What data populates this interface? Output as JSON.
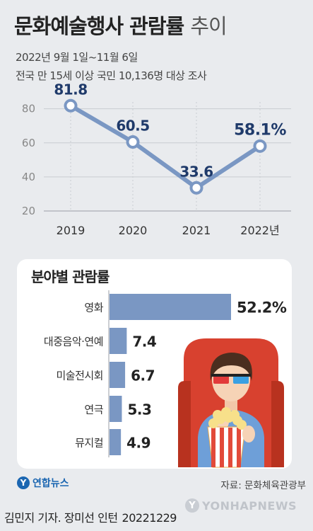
{
  "header": {
    "title_bold": "문화예술행사 관람률",
    "title_light": "추이",
    "subtitle_line1": "2022년 9월 1일~11월 6일",
    "subtitle_line2": "전국 만 15세 이상 국민 10,136명 대상 조사"
  },
  "chart_data": [
    {
      "type": "line",
      "x": [
        "2019",
        "2020",
        "2021",
        "2022년"
      ],
      "values": [
        81.8,
        60.5,
        33.6,
        58.1
      ],
      "value_labels": [
        "81.8",
        "60.5",
        "33.6",
        "58.1%"
      ],
      "yticks": [
        20,
        40,
        60,
        80
      ],
      "ylim": [
        20,
        84
      ],
      "grid": true,
      "line_color": "#7a97c3",
      "label_color": "#1f3a6a"
    },
    {
      "type": "bar",
      "title": "분야별 관람률",
      "categories": [
        "영화",
        "대중음악·연예",
        "미술전시회",
        "연극",
        "뮤지컬"
      ],
      "values": [
        52.2,
        7.4,
        6.7,
        5.3,
        4.9
      ],
      "value_labels": [
        "52.2%",
        "7.4",
        "6.7",
        "5.3",
        "4.9"
      ],
      "bar_color": "#7a97c3",
      "orientation": "horizontal"
    }
  ],
  "footer": {
    "source": "자료: 문화체육관광부",
    "credit": "김민지 기자. 장미선 인턴",
    "date": "20221229",
    "logo_text": "연합뉴스",
    "watermark": "YONHAPNEWS"
  }
}
